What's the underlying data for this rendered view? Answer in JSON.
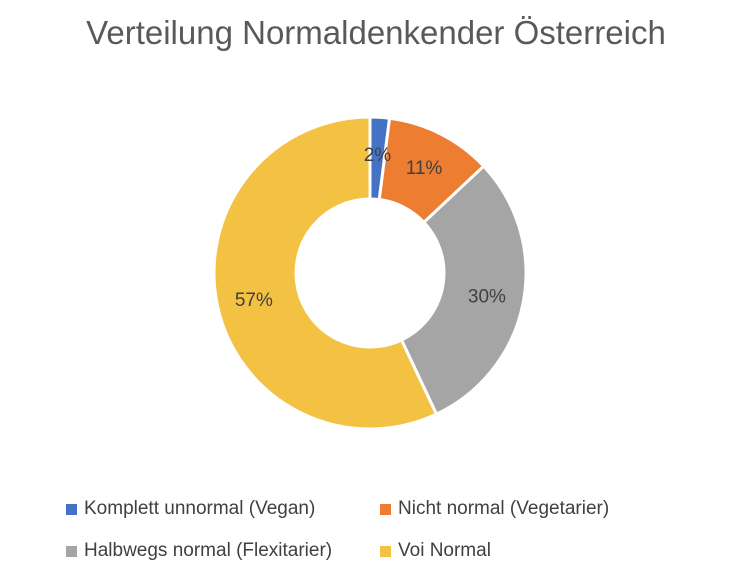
{
  "chart_data": {
    "type": "pie",
    "title": "Verteilung Normaldenkender Österreich",
    "donut": true,
    "categories": [
      "Komplett unnormal (Vegan)",
      "Nicht normal (Vegetarier)",
      "Halbwegs normal (Flexitarier)",
      "Voi Normal"
    ],
    "values": [
      2,
      11,
      30,
      57
    ],
    "data_labels": [
      "2%",
      "11%",
      "30%",
      "57%"
    ],
    "colors": [
      "#4472C4",
      "#ED7D31",
      "#A5A5A5",
      "#F4C242"
    ],
    "legend_position": "bottom"
  }
}
